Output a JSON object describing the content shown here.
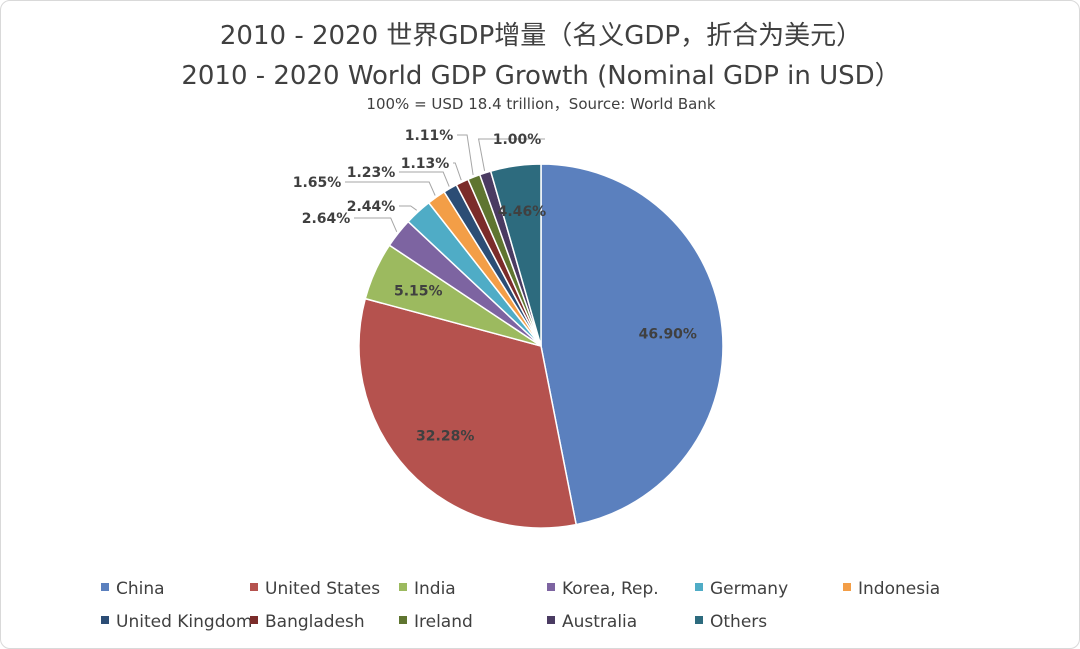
{
  "title_zh": "2010 - 2020 世界GDP增量（名义GDP，折合为美元）",
  "title_en": "2010 - 2020 World GDP Growth (Nominal GDP in USD）",
  "subtitle": "100% = USD 18.4 trillion，Source: World Bank",
  "chart_data": {
    "type": "pie",
    "title": "2010 - 2020 World GDP Growth (Nominal GDP in USD）",
    "legend_position": "bottom",
    "start_angle": "12 o'clock",
    "direction": "clockwise",
    "slices": [
      {
        "name": "China",
        "value": 46.9,
        "label": "46.90%",
        "color": "#5b80be"
      },
      {
        "name": "United States",
        "value": 32.28,
        "label": "32.28%",
        "color": "#b5524e"
      },
      {
        "name": "India",
        "value": 5.15,
        "label": "5.15%",
        "color": "#9cba5f"
      },
      {
        "name": "Korea, Rep.",
        "value": 2.64,
        "label": "2.64%",
        "color": "#7d64a1"
      },
      {
        "name": "Germany",
        "value": 2.44,
        "label": "2.44%",
        "color": "#4facc6"
      },
      {
        "name": "Indonesia",
        "value": 1.65,
        "label": "1.65%",
        "color": "#f39e47"
      },
      {
        "name": "United Kingdom",
        "value": 1.23,
        "label": "1.23%",
        "color": "#2c4d75"
      },
      {
        "name": "Bangladesh",
        "value": 1.13,
        "label": "1.13%",
        "color": "#7b2c2a"
      },
      {
        "name": "Ireland",
        "value": 1.11,
        "label": "1.11%",
        "color": "#5f7530"
      },
      {
        "name": "Australia",
        "value": 1.0,
        "label": "1.00%",
        "color": "#4a3b62"
      },
      {
        "name": "Others",
        "value": 4.46,
        "label": "4.46%",
        "color": "#2d6b7e"
      }
    ]
  }
}
